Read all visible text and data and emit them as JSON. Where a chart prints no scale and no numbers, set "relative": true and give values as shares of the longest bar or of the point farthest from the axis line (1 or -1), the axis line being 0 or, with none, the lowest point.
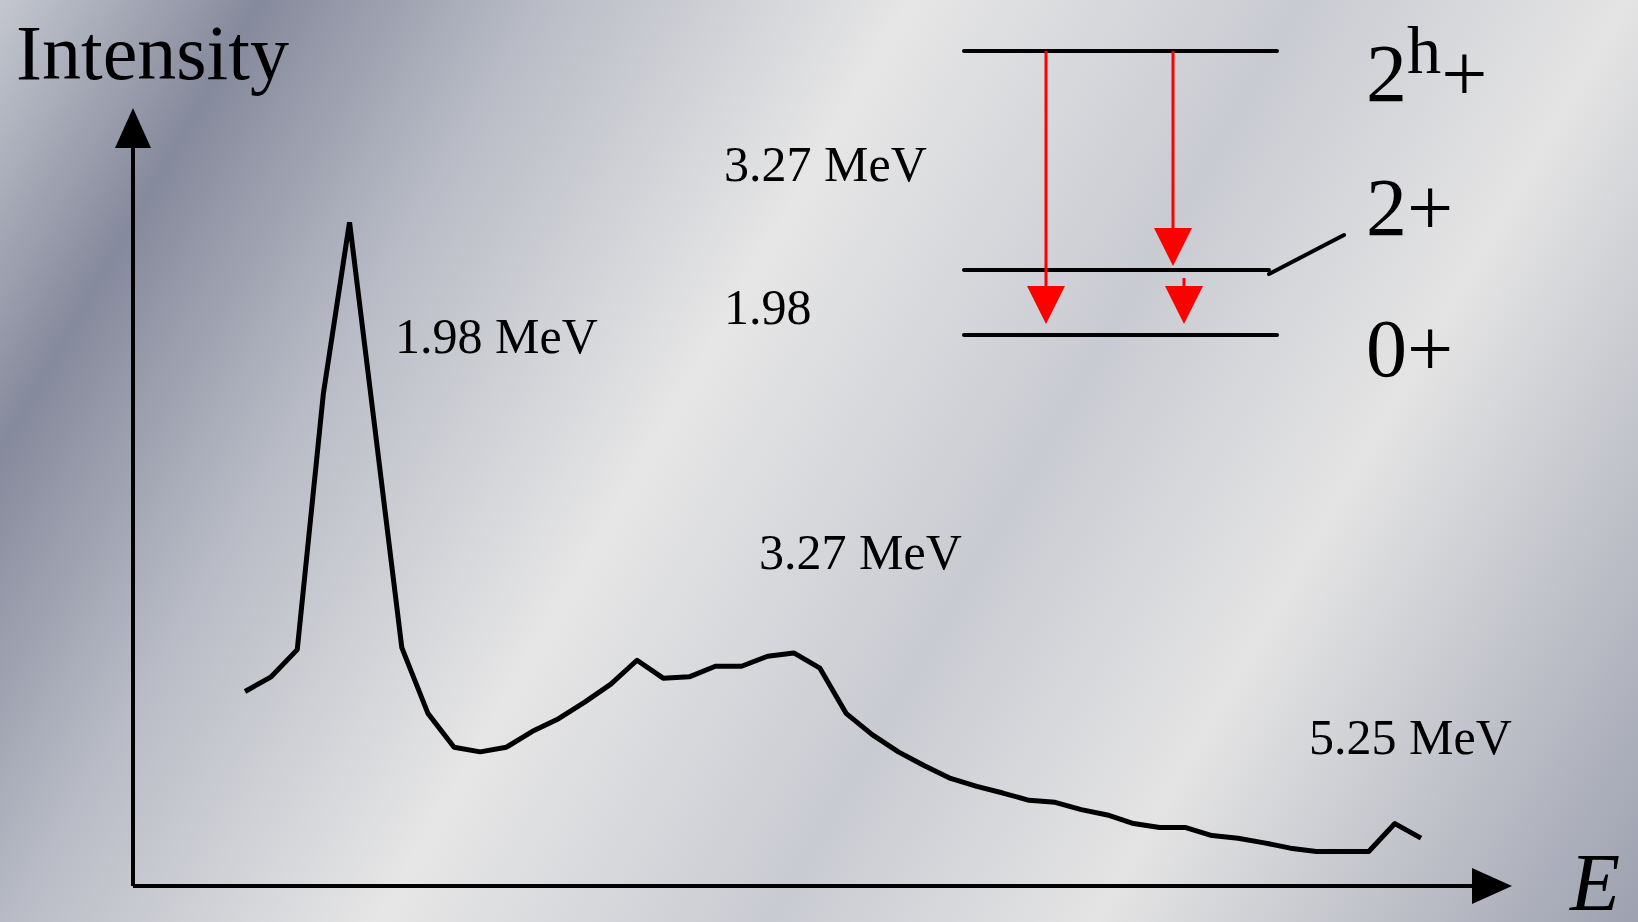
{
  "chart_data": {
    "type": "line",
    "relative": true,
    "xlabel": "E",
    "ylabel": "Intensity",
    "color": "#000000",
    "marker": "none",
    "line_style": "solid",
    "legend": false,
    "categories": [
      null,
      null,
      null,
      null,
      null,
      null,
      null,
      null,
      null,
      null,
      null,
      null,
      null,
      null,
      null,
      null,
      null,
      null,
      null,
      null,
      null,
      null,
      null,
      null,
      null,
      null,
      null,
      null,
      null,
      null,
      null,
      null,
      null,
      null,
      null,
      null,
      null,
      null,
      null,
      null,
      null,
      null,
      null,
      null,
      null,
      null
    ],
    "values": [
      0.293,
      0.315,
      0.356,
      0.742,
      1.0,
      0.68,
      0.359,
      0.26,
      0.209,
      0.202,
      0.209,
      0.233,
      0.252,
      0.277,
      0.304,
      0.34,
      0.313,
      0.315,
      0.331,
      0.331,
      0.346,
      0.351,
      0.328,
      0.26,
      0.228,
      0.202,
      0.181,
      0.162,
      0.15,
      0.14,
      0.129,
      0.126,
      0.115,
      0.107,
      0.094,
      0.088,
      0.088,
      0.076,
      0.072,
      0.065,
      0.057,
      0.052,
      0.052,
      0.052,
      0.094,
      0.072
    ],
    "annotations": [
      "1.98 MeV",
      "3.27 MeV",
      "5.25 MeV",
      "3.27 MeV",
      "1.98",
      "2$^{h}$+",
      "2+",
      "0+"
    ]
  }
}
